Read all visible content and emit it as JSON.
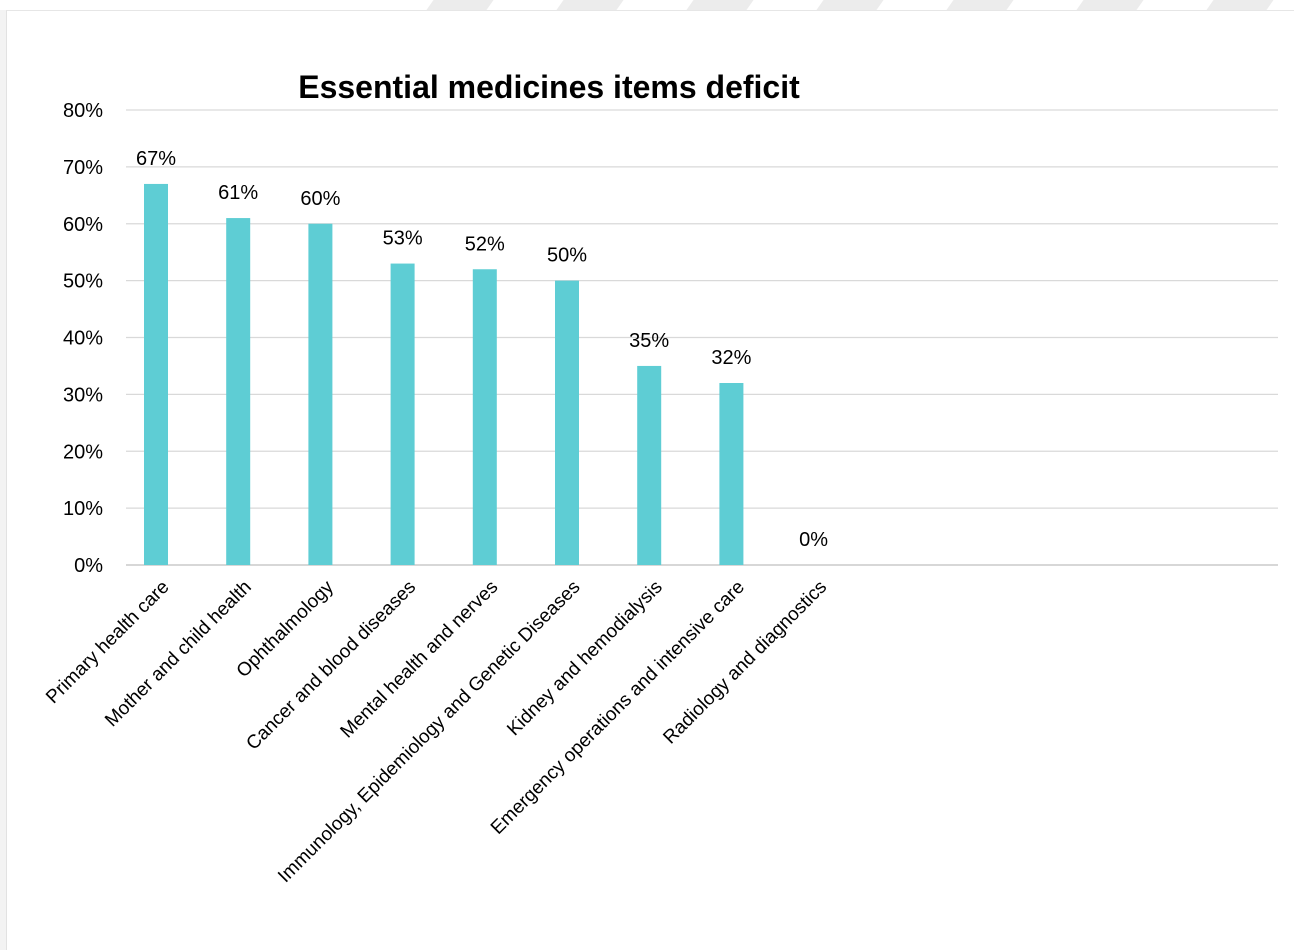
{
  "chart_data": {
    "type": "bar",
    "title": "Essential medicines items deficit",
    "xlabel": "",
    "ylabel": "",
    "categories": [
      "Primary health care",
      "Mother and child health",
      "Ophthalmology",
      "Cancer and blood diseases",
      "Mental health and nerves",
      "Immunology, Epidemiology and Genetic Diseases",
      "Kidney and hemodialysis",
      "Emergency operations and intensive care",
      "Radiology and diagnostics"
    ],
    "values": [
      67,
      61,
      60,
      53,
      52,
      50,
      35,
      32,
      0
    ],
    "data_labels": [
      "67%",
      "61%",
      "60%",
      "53%",
      "52%",
      "50%",
      "35%",
      "32%",
      "0%"
    ],
    "y_ticks": [
      "0%",
      "10%",
      "20%",
      "30%",
      "40%",
      "50%",
      "60%",
      "70%",
      "80%"
    ],
    "ylim": [
      0,
      80
    ],
    "grid": true,
    "bar_color": "#5ecdd4",
    "grid_color": "#d9d9d9"
  }
}
